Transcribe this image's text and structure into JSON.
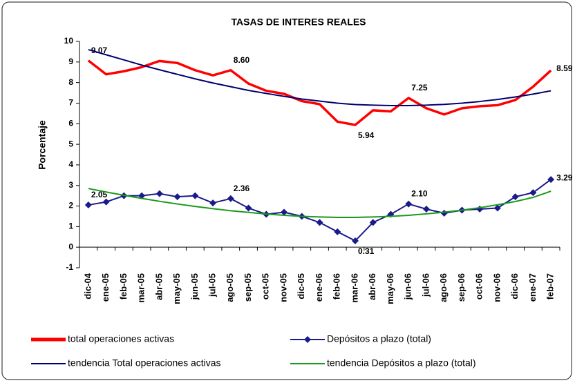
{
  "chart_data": {
    "type": "line",
    "title": "TASAS DE INTERES REALES",
    "y_label": "Porcentaje",
    "categories": [
      "dic-04",
      "ene-05",
      "feb-05",
      "mar-05",
      "abr-05",
      "may-05",
      "jun-05",
      "jul-05",
      "ago-05",
      "sep-05",
      "oct-05",
      "nov-05",
      "dic-05",
      "ene-06",
      "feb-06",
      "mar-06",
      "abr-06",
      "may-06",
      "jun-06",
      "jul-06",
      "ago-06",
      "sep-06",
      "oct-06",
      "nov-06",
      "dic-06",
      "ene-07",
      "feb-07"
    ],
    "series": [
      {
        "name": "total operaciones activas",
        "color": "#ff0000",
        "values": [
          9.07,
          8.4,
          8.55,
          8.75,
          9.05,
          8.95,
          8.6,
          8.35,
          8.6,
          7.95,
          7.6,
          7.45,
          7.1,
          6.95,
          6.1,
          5.94,
          6.65,
          6.6,
          7.25,
          6.75,
          6.45,
          6.75,
          6.85,
          6.9,
          7.15,
          7.8,
          8.59
        ],
        "value_labels": [
          "9.07",
          null,
          null,
          null,
          null,
          null,
          null,
          null,
          "8.60",
          null,
          null,
          null,
          null,
          null,
          null,
          "5.94",
          null,
          null,
          "7.25",
          null,
          null,
          null,
          null,
          null,
          null,
          null,
          "8.59"
        ]
      },
      {
        "name": "Depósitos a plazo (total)",
        "color": "#1a1a8c",
        "values": [
          2.05,
          2.2,
          2.5,
          2.5,
          2.6,
          2.45,
          2.5,
          2.15,
          2.36,
          1.9,
          1.6,
          1.7,
          1.5,
          1.2,
          0.75,
          0.31,
          1.2,
          1.6,
          2.1,
          1.85,
          1.65,
          1.8,
          1.85,
          1.9,
          2.45,
          2.65,
          3.29
        ],
        "value_labels": [
          "2.05",
          null,
          null,
          null,
          null,
          null,
          null,
          null,
          "2.36",
          null,
          null,
          null,
          null,
          null,
          null,
          "0.31",
          null,
          null,
          "2.10",
          null,
          null,
          null,
          null,
          null,
          null,
          null,
          "3.29"
        ]
      },
      {
        "name": "tendencia  Total operaciones activas",
        "color": "#00006e",
        "values": [
          9.6,
          9.35,
          9.1,
          8.85,
          8.62,
          8.4,
          8.18,
          7.98,
          7.8,
          7.62,
          7.47,
          7.33,
          7.2,
          7.1,
          7.0,
          6.93,
          6.9,
          6.88,
          6.88,
          6.9,
          6.94,
          7.0,
          7.08,
          7.18,
          7.3,
          7.44,
          7.6
        ]
      },
      {
        "name": "tendencia Depósitos a plazo (total)",
        "color": "#1a9a1a",
        "values": [
          2.85,
          2.68,
          2.52,
          2.37,
          2.23,
          2.1,
          1.98,
          1.87,
          1.77,
          1.69,
          1.61,
          1.55,
          1.5,
          1.47,
          1.45,
          1.45,
          1.47,
          1.5,
          1.55,
          1.62,
          1.7,
          1.8,
          1.92,
          2.06,
          2.22,
          2.42,
          2.72
        ]
      }
    ],
    "ylim": [
      -1,
      10
    ],
    "yticks": [
      -1,
      0,
      1,
      2,
      3,
      4,
      5,
      6,
      7,
      8,
      9,
      10
    ],
    "grid": false
  }
}
